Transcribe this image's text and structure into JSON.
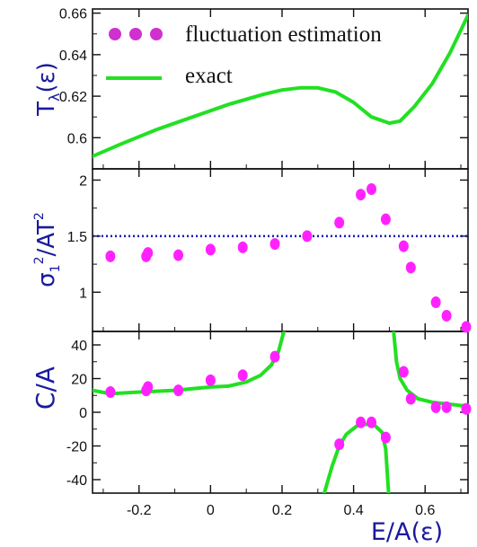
{
  "chart_data": [
    {
      "type": "line",
      "panel": "top",
      "ylabel": "Tₓ(ε)",
      "ylabel_parts": {
        "main": "T",
        "sub": "λ",
        "arg": "(ε)"
      },
      "xlim": [
        -0.33,
        0.72
      ],
      "ylim": [
        0.585,
        0.662
      ],
      "yticks": [
        0.6,
        0.62,
        0.64,
        0.66
      ],
      "ytick_labels": [
        "0.6",
        "0.62",
        "0.64",
        "0.66"
      ],
      "legend": {
        "position": "top-left",
        "entries": [
          {
            "label": "fluctuation estimation",
            "marker": "dots",
            "color": "#e020e0"
          },
          {
            "label": "exact",
            "marker": "line",
            "color": "#22e022"
          }
        ]
      },
      "series": [
        {
          "name": "exact",
          "color": "#22e022",
          "x": [
            -0.33,
            -0.25,
            -0.15,
            -0.05,
            0.05,
            0.15,
            0.2,
            0.25,
            0.3,
            0.35,
            0.4,
            0.45,
            0.5,
            0.53,
            0.57,
            0.62,
            0.67,
            0.72
          ],
          "y": [
            0.591,
            0.597,
            0.604,
            0.61,
            0.616,
            0.621,
            0.623,
            0.624,
            0.624,
            0.622,
            0.617,
            0.61,
            0.607,
            0.608,
            0.615,
            0.626,
            0.641,
            0.659
          ]
        }
      ]
    },
    {
      "type": "scatter",
      "panel": "middle",
      "ylabel": "σ₁²/AT²",
      "ylabel_parts": {
        "sigma": "σ",
        "sub": "1",
        "sup": "2",
        "rest": "/AT",
        "sup2": "2"
      },
      "xlim": [
        -0.33,
        0.72
      ],
      "ylim": [
        0.65,
        2.1
      ],
      "yticks": [
        1,
        1.5,
        2
      ],
      "ytick_labels": [
        "1",
        "1.5",
        "2"
      ],
      "reference_line": {
        "y": 1.5,
        "style": "dotted",
        "color": "#1a1ab0"
      },
      "series": [
        {
          "name": "fluctuation estimation",
          "color": "#ff22ff",
          "x": [
            -0.28,
            -0.18,
            -0.175,
            -0.09,
            0.0,
            0.09,
            0.18,
            0.27,
            0.36,
            0.42,
            0.45,
            0.49,
            0.54,
            0.56,
            0.63,
            0.66,
            0.715
          ],
          "y": [
            1.32,
            1.32,
            1.35,
            1.33,
            1.38,
            1.4,
            1.43,
            1.5,
            1.62,
            1.87,
            1.92,
            1.65,
            1.41,
            1.22,
            0.91,
            0.79,
            0.69
          ]
        }
      ]
    },
    {
      "type": "line",
      "panel": "bottom",
      "ylabel": "C/A",
      "xlabel": "E/A(ε)",
      "xlim": [
        -0.33,
        0.72
      ],
      "ylim": [
        -48,
        48
      ],
      "yticks": [
        -40,
        -20,
        0,
        20,
        40
      ],
      "ytick_labels": [
        "-40",
        "-20",
        "0",
        "20",
        "40"
      ],
      "xticks": [
        -0.2,
        0,
        0.2,
        0.4,
        0.6
      ],
      "xtick_labels": [
        "-0.2",
        "0",
        "0.2",
        "0.4",
        "0.6"
      ],
      "series": [
        {
          "name": "exact",
          "color": "#22e022",
          "segments": [
            {
              "x": [
                -0.33,
                -0.28,
                -0.2,
                -0.1,
                0.0,
                0.05,
                0.1,
                0.14,
                0.17,
                0.19,
                0.205
              ],
              "y": [
                13,
                11,
                12,
                13,
                15,
                15.5,
                18,
                22,
                28,
                36,
                48
              ]
            },
            {
              "x": [
                0.318,
                0.34,
                0.36,
                0.38,
                0.41,
                0.44,
                0.46,
                0.48,
                0.49,
                0.498
              ],
              "y": [
                -48,
                -32,
                -20,
                -13,
                -8,
                -7,
                -8,
                -12,
                -22,
                -48
              ]
            },
            {
              "x": [
                0.512,
                0.52,
                0.53,
                0.55,
                0.58,
                0.62,
                0.66,
                0.7,
                0.72
              ],
              "y": [
                48,
                30,
                20,
                13,
                8,
                6,
                5,
                4,
                4
              ]
            }
          ]
        },
        {
          "name": "fluctuation estimation",
          "color": "#ff22ff",
          "x": [
            -0.28,
            -0.18,
            -0.175,
            -0.09,
            0.0,
            0.09,
            0.18,
            0.36,
            0.42,
            0.45,
            0.49,
            0.54,
            0.56,
            0.63,
            0.66,
            0.715
          ],
          "y": [
            12,
            13,
            15,
            13,
            19,
            22,
            33,
            -19,
            -6,
            -6,
            -15,
            24,
            8,
            3,
            3,
            2
          ]
        }
      ]
    }
  ]
}
